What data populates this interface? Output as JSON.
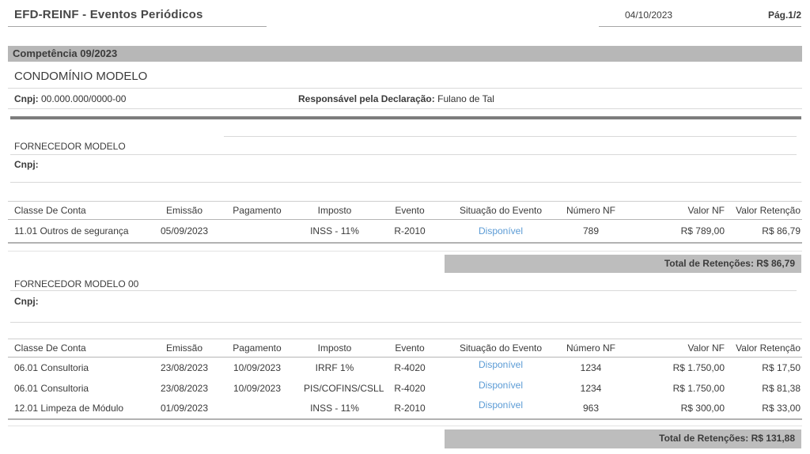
{
  "header": {
    "title": "EFD-REINF - Eventos Periódicos",
    "date": "04/10/2023",
    "page": "Pág.1/2"
  },
  "competencia": {
    "label": "Competência 09/2023"
  },
  "declarante": {
    "name": "CONDOMÍNIO MODELO",
    "cnpj_label": "Cnpj:",
    "cnpj_value": "00.000.000/0000-00",
    "responsavel_label": "Responsável pela Declaração:",
    "responsavel_value": "Fulano de Tal"
  },
  "table_headers": [
    "Classe De Conta",
    "Emissão",
    "Pagamento",
    "Imposto",
    "Evento",
    "Situação do Evento",
    "Número NF",
    "Valor NF",
    "Valor Retenção"
  ],
  "sections": [
    {
      "name": "FORNECEDOR MODELO",
      "cnpj_label": "Cnpj:",
      "cnpj_value": "",
      "rows": [
        {
          "classe": "11.01 Outros de segurança",
          "emissao": "05/09/2023",
          "pagamento": "",
          "imposto": "INSS - 11%",
          "evento": "R-2010",
          "situacao": "Disponível",
          "numero_nf": "789",
          "valor_nf": "R$ 789,00",
          "valor_retencao": "R$ 86,79"
        }
      ],
      "total": "Total de Retenções: R$ 86,79"
    },
    {
      "name": "FORNECEDOR MODELO 00",
      "cnpj_label": "Cnpj:",
      "cnpj_value": "",
      "rows": [
        {
          "classe": "06.01 Consultoria",
          "emissao": "23/08/2023",
          "pagamento": "10/09/2023",
          "imposto": "IRRF 1%",
          "evento": "R-4020",
          "situacao": "Disponível",
          "numero_nf": "1234",
          "valor_nf": "R$ 1.750,00",
          "valor_retencao": "R$ 17,50"
        },
        {
          "classe": "06.01 Consultoria",
          "emissao": "23/08/2023",
          "pagamento": "10/09/2023",
          "imposto": "PIS/COFINS/CSLL",
          "evento": "R-4020",
          "situacao": "Disponível",
          "numero_nf": "1234",
          "valor_nf": "R$ 1.750,00",
          "valor_retencao": "R$ 81,38"
        },
        {
          "classe": "12.01 Limpeza de Módulo",
          "emissao": "01/09/2023",
          "pagamento": "",
          "imposto": "INSS - 11%",
          "evento": "R-2010",
          "situacao": "Disponível",
          "numero_nf": "963",
          "valor_nf": "R$ 300,00",
          "valor_retencao": "R$ 33,00"
        }
      ],
      "total": "Total de Retenções: R$ 131,88"
    }
  ],
  "colors": {
    "bar_gray": "#b7b7b7",
    "total_bar_gray": "#bdbdbd",
    "divider_dark": "#7d7d7d",
    "link_blue": "#5b9bd5",
    "title_text": "#474747"
  }
}
